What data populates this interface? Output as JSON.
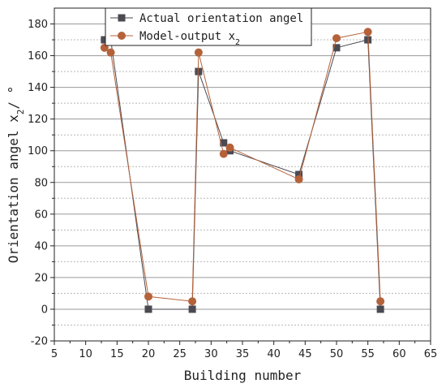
{
  "chart_data": {
    "type": "line",
    "xlabel": "Building number",
    "ylabel": "Orientation angel x",
    "ylabel_subscript": "2",
    "ylabel_unit": "/ °",
    "xlim": [
      5,
      65
    ],
    "ylim": [
      -20,
      190
    ],
    "x_ticks": [
      5,
      10,
      15,
      20,
      25,
      30,
      35,
      40,
      45,
      50,
      55,
      60,
      65
    ],
    "y_ticks": [
      -20,
      0,
      20,
      40,
      60,
      80,
      100,
      120,
      140,
      160,
      180
    ],
    "grid": true,
    "legend_position": "top",
    "series": [
      {
        "name": "Actual orientation angel",
        "marker": "square",
        "color": "#4a4a52",
        "x": [
          13,
          14,
          20,
          27,
          28,
          32,
          33,
          44,
          50,
          55,
          57
        ],
        "y": [
          170,
          170,
          0,
          0,
          150,
          105,
          100,
          85,
          165,
          170,
          0
        ]
      },
      {
        "name": "Model-output x",
        "name_subscript": "2",
        "marker": "circle",
        "color": "#b5623a",
        "x": [
          13,
          14,
          20,
          27,
          28,
          32,
          33,
          44,
          50,
          55,
          57
        ],
        "y": [
          165,
          162,
          8,
          5,
          162,
          98,
          102,
          82,
          171,
          175,
          5
        ]
      }
    ]
  }
}
